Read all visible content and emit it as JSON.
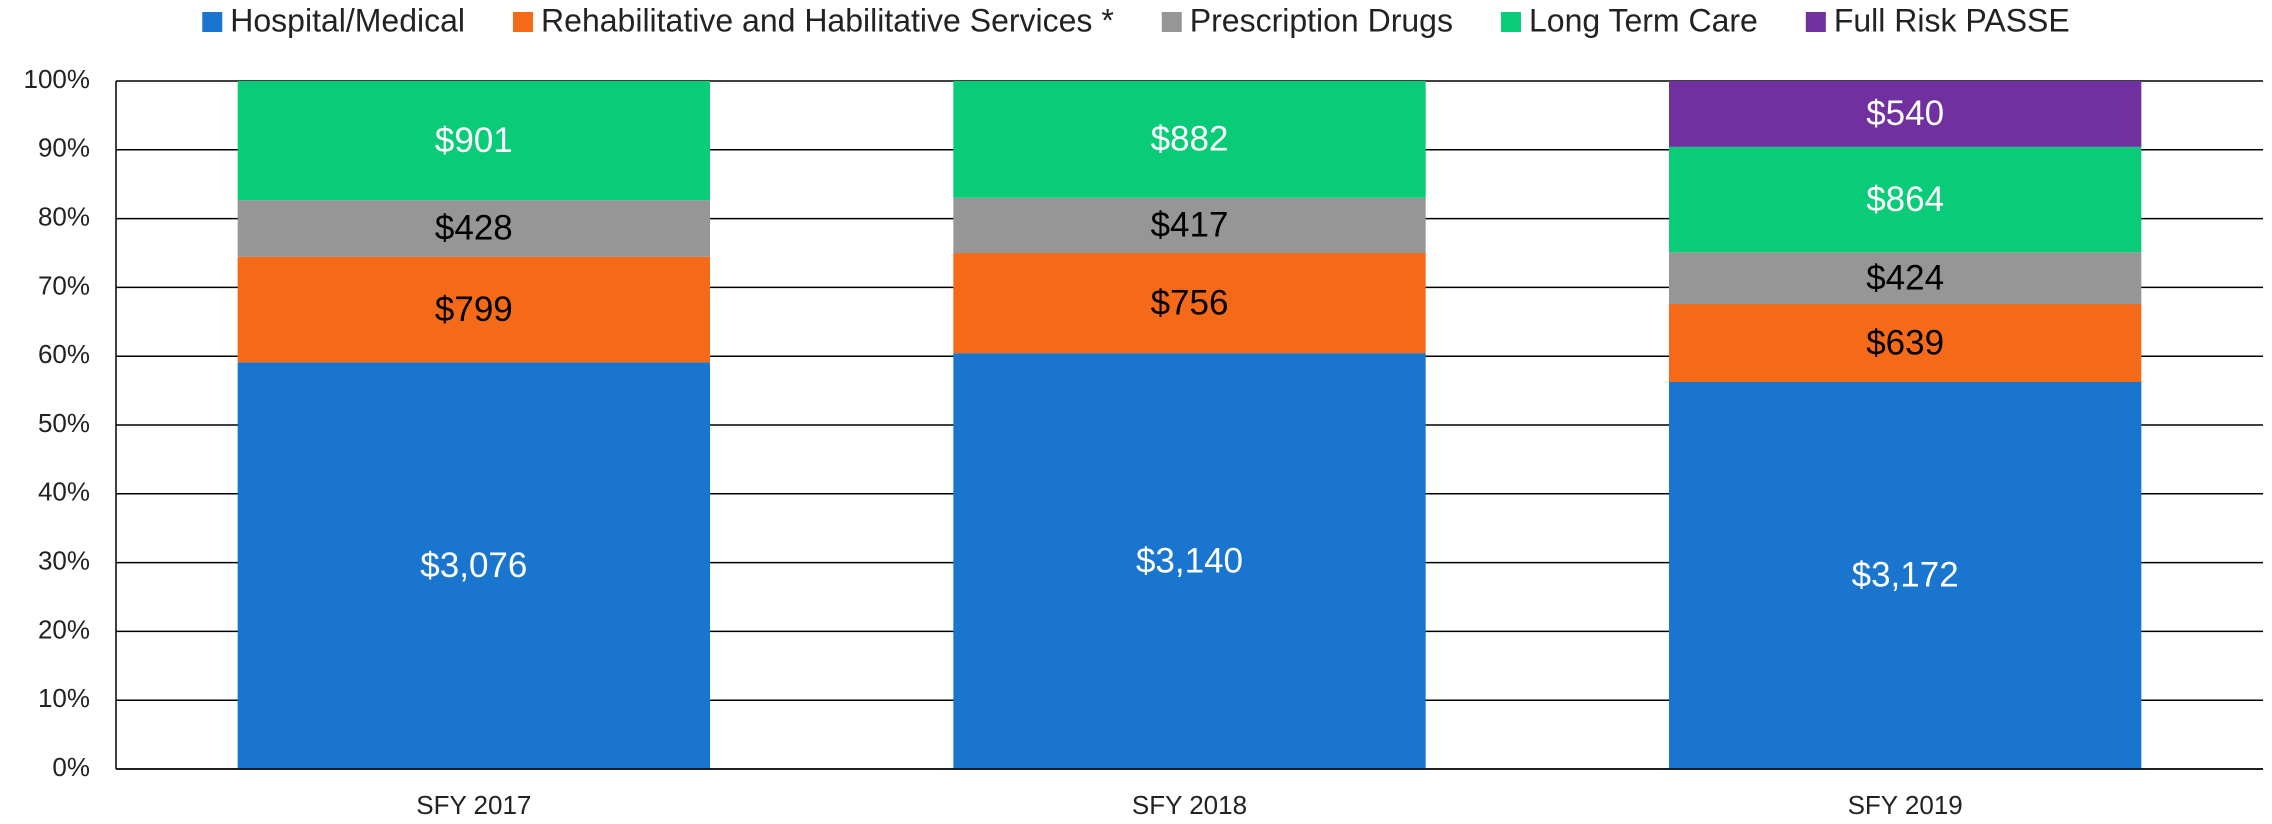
{
  "chart_data": {
    "type": "bar",
    "stacking": "percent",
    "categories": [
      "SFY 2017",
      "SFY 2018",
      "SFY 2019"
    ],
    "series": [
      {
        "name": "Hospital/Medical",
        "color": "#1a75cf",
        "label_color": "#ffffff",
        "values": [
          3076,
          3140,
          3172
        ],
        "value_labels": [
          "$3,076",
          "$3,140",
          "$3,172"
        ]
      },
      {
        "name": "Rehabilitative and Habilitative Services *",
        "color": "#f56a18",
        "label_color": "#000000",
        "values": [
          799,
          756,
          639
        ],
        "value_labels": [
          "$799",
          "$756",
          "$639"
        ]
      },
      {
        "name": "Prescription Drugs",
        "color": "#969696",
        "label_color": "#000000",
        "values": [
          428,
          417,
          424
        ],
        "value_labels": [
          "$428",
          "$417",
          "$424"
        ]
      },
      {
        "name": "Long Term Care",
        "color": "#0acc78",
        "label_color": "#ffffff",
        "values": [
          901,
          882,
          864
        ],
        "value_labels": [
          "$901",
          "$882",
          "$864"
        ]
      },
      {
        "name": "Full Risk PASSE",
        "color": "#7030a0",
        "label_color": "#ffffff",
        "values": [
          null,
          null,
          540
        ],
        "value_labels": [
          null,
          null,
          "$540"
        ]
      }
    ],
    "ylim": [
      0,
      100
    ],
    "yticks": [
      {
        "value": 0,
        "label": "0%"
      },
      {
        "value": 10,
        "label": "10%"
      },
      {
        "value": 20,
        "label": "20%"
      },
      {
        "value": 30,
        "label": "30%"
      },
      {
        "value": 40,
        "label": "40%"
      },
      {
        "value": 50,
        "label": "50%"
      },
      {
        "value": 60,
        "label": "60%"
      },
      {
        "value": 70,
        "label": "70%"
      },
      {
        "value": 80,
        "label": "80%"
      },
      {
        "value": 90,
        "label": "90%"
      },
      {
        "value": 100,
        "label": "100%"
      }
    ],
    "grid": true,
    "legend": "top"
  }
}
